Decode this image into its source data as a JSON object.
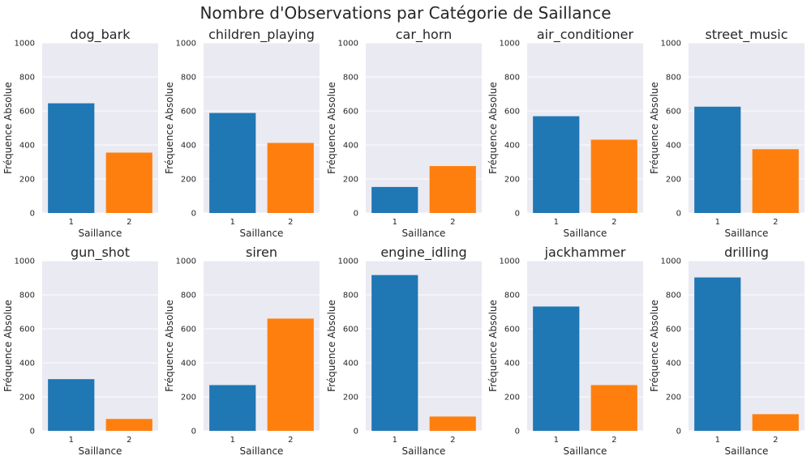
{
  "figure": {
    "suptitle": "Nombre d'Observations par Catégorie de Saillance"
  },
  "colors": {
    "plot_bg": "#EAEAF2",
    "grid": "#FFFFFF",
    "series": [
      "#1F77B4",
      "#FF7F0E"
    ]
  },
  "chart_data": [
    {
      "type": "bar",
      "title": "dog_bark",
      "categories": [
        "1",
        "2"
      ],
      "values": [
        645,
        355
      ],
      "xlabel": "Saillance",
      "ylabel": "Fréquence Absolue",
      "ylim": [
        0,
        1000
      ],
      "yticks": [
        "0",
        "200",
        "400",
        "600",
        "800",
        "1000"
      ],
      "grid": true
    },
    {
      "type": "bar",
      "title": "children_playing",
      "categories": [
        "1",
        "2"
      ],
      "values": [
        588,
        412
      ],
      "xlabel": "Saillance",
      "ylabel": "Fréquence Absolue",
      "ylim": [
        0,
        1000
      ],
      "yticks": [
        "0",
        "200",
        "400",
        "600",
        "800",
        "1000"
      ],
      "grid": true
    },
    {
      "type": "bar",
      "title": "car_horn",
      "categories": [
        "1",
        "2"
      ],
      "values": [
        153,
        276
      ],
      "xlabel": "Saillance",
      "ylabel": "Fréquence Absolue",
      "ylim": [
        0,
        1000
      ],
      "yticks": [
        "0",
        "200",
        "400",
        "600",
        "800",
        "1000"
      ],
      "grid": true
    },
    {
      "type": "bar",
      "title": "air_conditioner",
      "categories": [
        "1",
        "2"
      ],
      "values": [
        569,
        431
      ],
      "xlabel": "Saillance",
      "ylabel": "Fréquence Absolue",
      "ylim": [
        0,
        1000
      ],
      "yticks": [
        "0",
        "200",
        "400",
        "600",
        "800",
        "1000"
      ],
      "grid": true
    },
    {
      "type": "bar",
      "title": "street_music",
      "categories": [
        "1",
        "2"
      ],
      "values": [
        625,
        375
      ],
      "xlabel": "Saillance",
      "ylabel": "Fréquence Absolue",
      "ylim": [
        0,
        1000
      ],
      "yticks": [
        "0",
        "200",
        "400",
        "600",
        "800",
        "1000"
      ],
      "grid": true
    },
    {
      "type": "bar",
      "title": "gun_shot",
      "categories": [
        "1",
        "2"
      ],
      "values": [
        304,
        70
      ],
      "xlabel": "Saillance",
      "ylabel": "Fréquence Absolue",
      "ylim": [
        0,
        1000
      ],
      "yticks": [
        "0",
        "200",
        "400",
        "600",
        "800",
        "1000"
      ],
      "grid": true
    },
    {
      "type": "bar",
      "title": "siren",
      "categories": [
        "1",
        "2"
      ],
      "values": [
        269,
        660
      ],
      "xlabel": "Saillance",
      "ylabel": "Fréquence Absolue",
      "ylim": [
        0,
        1000
      ],
      "yticks": [
        "0",
        "200",
        "400",
        "600",
        "800",
        "1000"
      ],
      "grid": true
    },
    {
      "type": "bar",
      "title": "engine_idling",
      "categories": [
        "1",
        "2"
      ],
      "values": [
        916,
        84
      ],
      "xlabel": "Saillance",
      "ylabel": "Fréquence Absolue",
      "ylim": [
        0,
        1000
      ],
      "yticks": [
        "0",
        "200",
        "400",
        "600",
        "800",
        "1000"
      ],
      "grid": true
    },
    {
      "type": "bar",
      "title": "jackhammer",
      "categories": [
        "1",
        "2"
      ],
      "values": [
        731,
        269
      ],
      "xlabel": "Saillance",
      "ylabel": "Fréquence Absolue",
      "ylim": [
        0,
        1000
      ],
      "yticks": [
        "0",
        "200",
        "400",
        "600",
        "800",
        "1000"
      ],
      "grid": true
    },
    {
      "type": "bar",
      "title": "drilling",
      "categories": [
        "1",
        "2"
      ],
      "values": [
        902,
        98
      ],
      "xlabel": "Saillance",
      "ylabel": "Fréquence Absolue",
      "ylim": [
        0,
        1000
      ],
      "yticks": [
        "0",
        "200",
        "400",
        "600",
        "800",
        "1000"
      ],
      "grid": true
    }
  ]
}
